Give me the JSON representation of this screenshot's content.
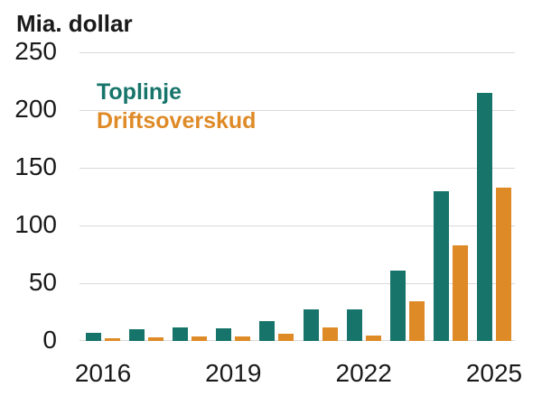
{
  "title": "Mia. dollar",
  "legend": {
    "items": [
      {
        "label": "Toplinje",
        "color": "#17746B"
      },
      {
        "label": "Driftsoverskud",
        "color": "#DE8A27"
      }
    ]
  },
  "chart_data": {
    "type": "bar",
    "title": "Mia. dollar",
    "ylabel": "Mia. dollar",
    "categories": [
      "2016",
      "2017",
      "2018",
      "2019",
      "2020",
      "2021",
      "2022",
      "2023",
      "2024",
      "2025"
    ],
    "series": [
      {
        "name": "Toplinje",
        "color": "#17746B",
        "values": [
          7,
          10,
          12,
          11,
          17,
          27,
          27,
          61,
          130,
          215
        ]
      },
      {
        "name": "Driftsoverskud",
        "color": "#DE8A27",
        "values": [
          2,
          3,
          4,
          4,
          6,
          12,
          5,
          34,
          83,
          133
        ]
      }
    ],
    "ylim": [
      0,
      250
    ],
    "y_ticks": [
      0,
      50,
      100,
      150,
      200,
      250
    ],
    "x_tick_labels": [
      {
        "index": 0,
        "label": "2016"
      },
      {
        "index": 3,
        "label": "2019"
      },
      {
        "index": 6,
        "label": "2022"
      },
      {
        "index": 9,
        "label": "2025"
      }
    ],
    "grid": true,
    "legend_position": "top-left-inside"
  },
  "colors": {
    "grid": "#D9D9D9",
    "text": "#1A1A1A",
    "background": "#FFFFFF"
  }
}
